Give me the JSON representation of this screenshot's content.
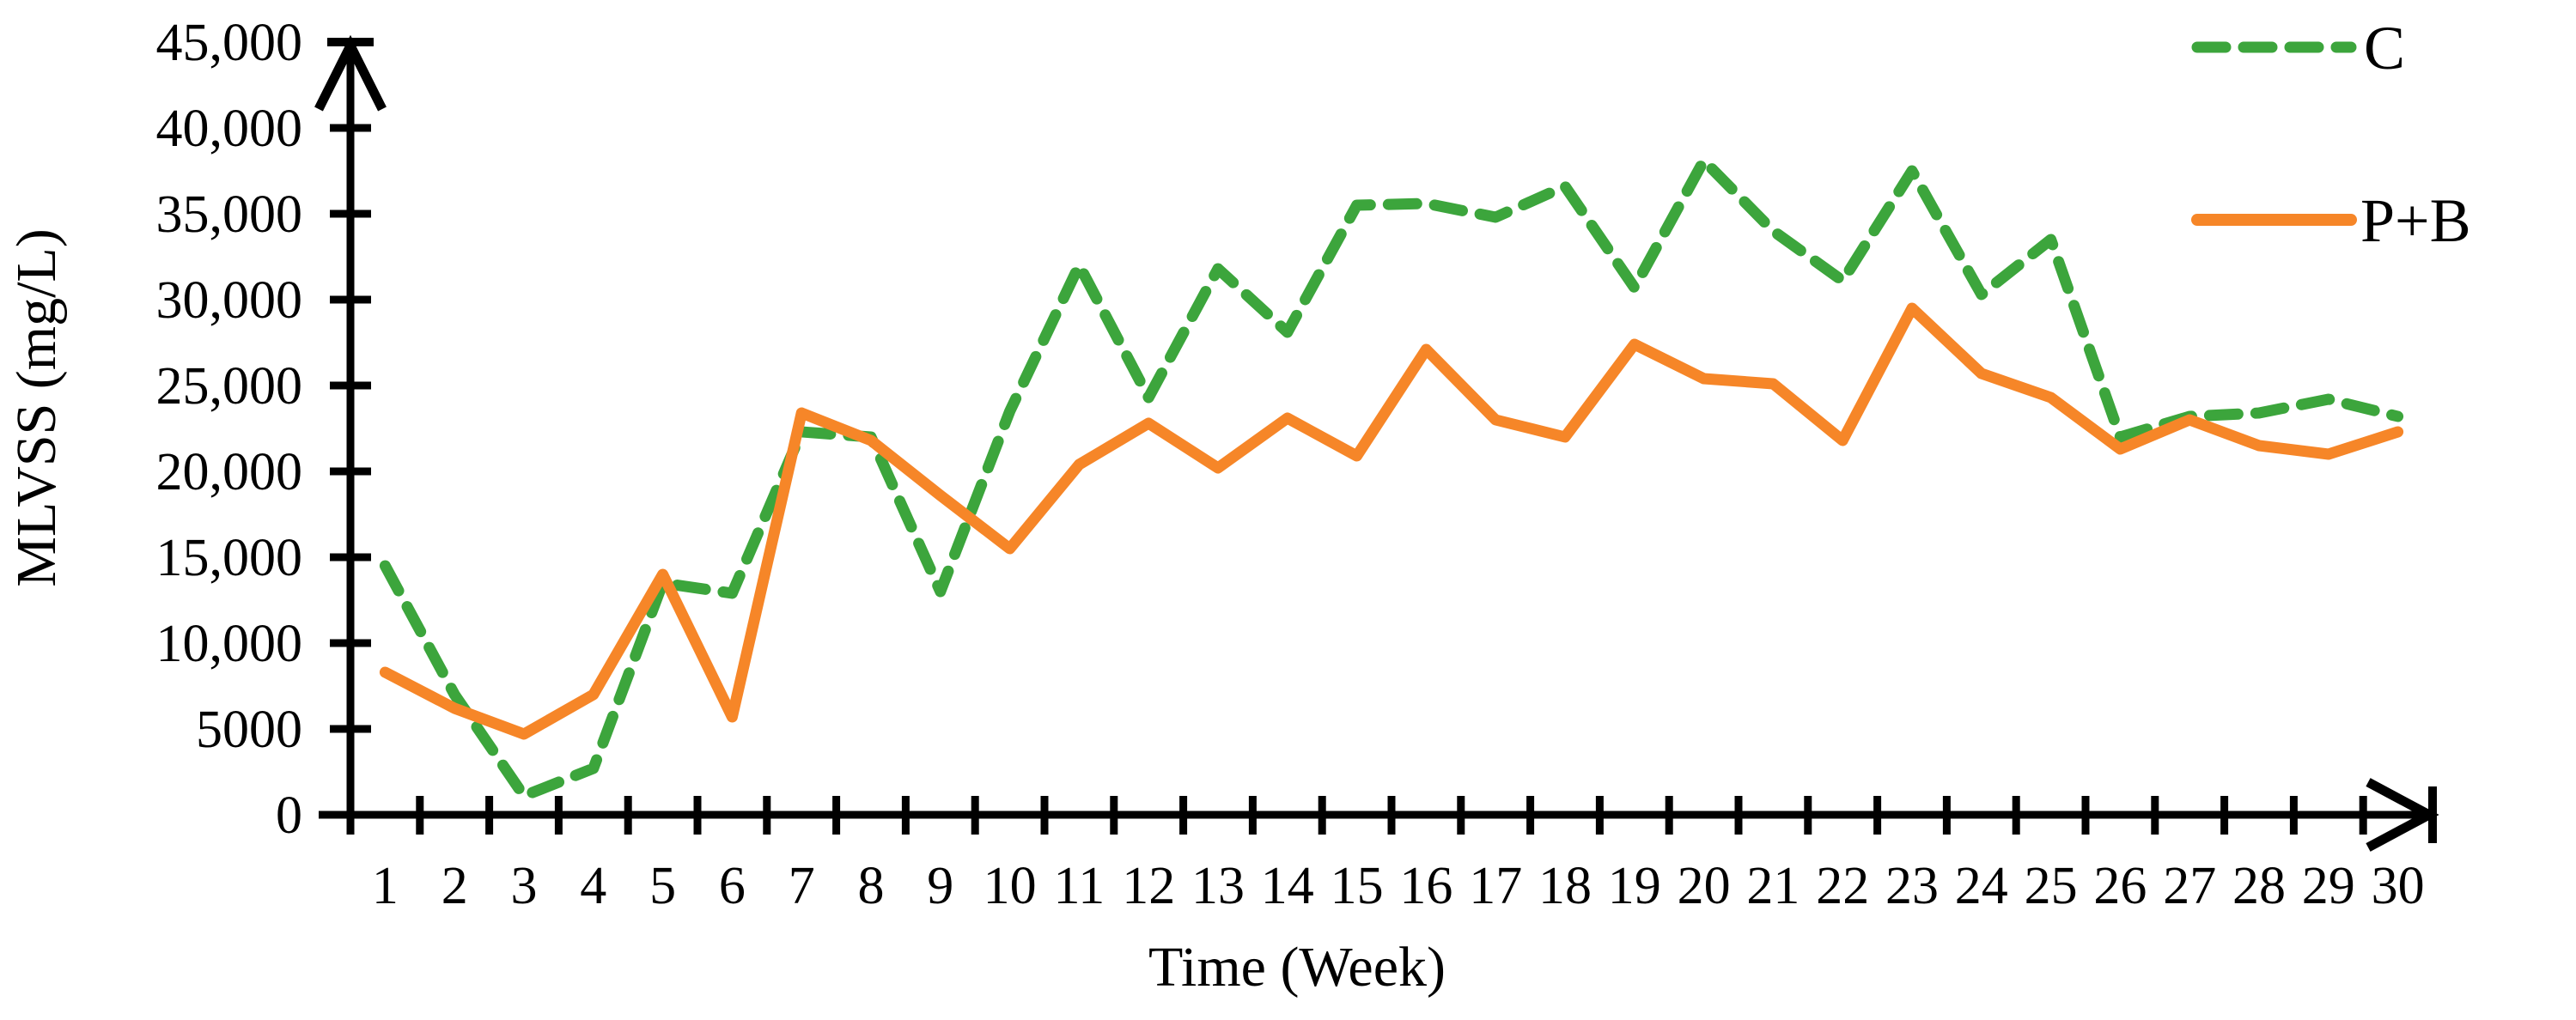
{
  "chart_data": {
    "type": "line",
    "title": "",
    "xlabel": "Time (Week)",
    "ylabel": "MLVSS (mg/L)",
    "x": [
      1,
      2,
      3,
      4,
      5,
      6,
      7,
      8,
      9,
      10,
      11,
      12,
      13,
      14,
      15,
      16,
      17,
      18,
      19,
      20,
      21,
      22,
      23,
      24,
      25,
      26,
      27,
      28,
      29,
      30
    ],
    "x_tick_labels": [
      "1",
      "2",
      "3",
      "4",
      "5",
      "6",
      "7",
      "8",
      "9",
      "10",
      "11",
      "12",
      "13",
      "14",
      "15",
      "16",
      "17",
      "18",
      "19",
      "20",
      "21",
      "22",
      "23",
      "24",
      "25",
      "26",
      "27",
      "28",
      "29",
      "30"
    ],
    "y_tick_values": [
      0,
      5000,
      10000,
      15000,
      20000,
      25000,
      30000,
      35000,
      40000,
      45000
    ],
    "y_tick_labels": [
      "0",
      "5000",
      "10,000",
      "15,000",
      "20,000",
      "25,000",
      "30,000",
      "35,000",
      "40,000",
      "45,000"
    ],
    "ylim": [
      0,
      45000
    ],
    "grid": false,
    "legend_position": "top-right",
    "series": [
      {
        "name": "C",
        "style": "dashed",
        "color": "#3CA53C",
        "values": [
          14500,
          7000,
          1100,
          2700,
          13500,
          12900,
          22300,
          22000,
          13000,
          23500,
          32000,
          24300,
          31800,
          28100,
          35500,
          35600,
          34800,
          36600,
          30700,
          38100,
          34000,
          31100,
          37500,
          30300,
          33500,
          22000,
          23200,
          23400,
          24200,
          23200
        ]
      },
      {
        "name": "P+B",
        "style": "solid",
        "color": "#F68628",
        "values": [
          8300,
          6200,
          4700,
          7000,
          14000,
          5700,
          23400,
          21800,
          18600,
          15500,
          20400,
          22800,
          20200,
          23100,
          20900,
          27100,
          23000,
          22000,
          27400,
          25400,
          25100,
          21800,
          29500,
          25700,
          24300,
          21300,
          23000,
          21500,
          21000,
          22300
        ]
      }
    ],
    "axis_color": "#000000",
    "background_color": "#FFFFFF"
  }
}
